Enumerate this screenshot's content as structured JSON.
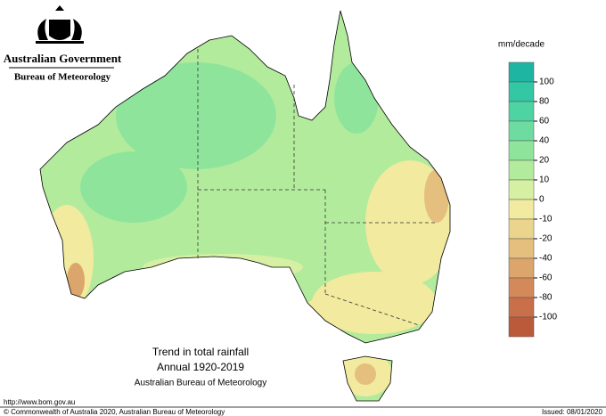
{
  "header": {
    "title": "Australian Government",
    "subtitle": "Bureau of Meteorology"
  },
  "map": {
    "title": "Trend in total rainfall",
    "subtitle": "Annual 1920-2019",
    "source": "Australian Bureau of Meteorology"
  },
  "legend": {
    "title": "mm/decade",
    "ticks": [
      100,
      80,
      60,
      40,
      20,
      10,
      0,
      -10,
      -20,
      -40,
      -60,
      -80,
      -100
    ],
    "colors": [
      "#1fb5a3",
      "#33c7a4",
      "#4ed3a3",
      "#6cdca0",
      "#8fe49c",
      "#b3eb9d",
      "#d6f0a3",
      "#f1ea9f",
      "#ebd58d",
      "#e4bf7d",
      "#dba56b",
      "#d4895a",
      "#c96f4a",
      "#bb593b"
    ]
  },
  "footer": {
    "url": "http://www.bom.gov.au",
    "copyright": "© Commonwealth of Australia 2020, Australian Bureau of Meteorology",
    "issued": "Issued: 08/01/2020"
  }
}
